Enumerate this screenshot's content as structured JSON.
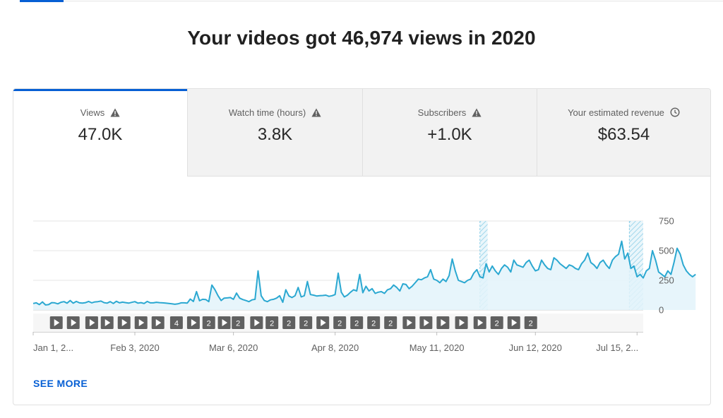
{
  "headline": "Your videos got 46,974 views in 2020",
  "accent_color": "#065fd4",
  "tabs": [
    {
      "label": "Views",
      "value": "47.0K",
      "icon": "warning-icon",
      "selected": true
    },
    {
      "label": "Watch time (hours)",
      "value": "3.8K",
      "icon": "warning-icon",
      "selected": false
    },
    {
      "label": "Subscribers",
      "value": "+1.0K",
      "icon": "warning-icon",
      "selected": false
    },
    {
      "label": "Your estimated revenue",
      "value": "$63.54",
      "icon": "clock-icon",
      "selected": false
    }
  ],
  "see_more": "SEE MORE",
  "chart_data": {
    "type": "line",
    "series_name": "Views",
    "line_color": "#2ba8d1",
    "fill_color": "#e3f3fa",
    "y_ticks": [
      "750",
      "500",
      "250",
      "0"
    ],
    "y_tick_values": [
      750,
      500,
      250,
      0
    ],
    "ylim": [
      0,
      750
    ],
    "x_tick_labels": [
      "Jan 1, 2...",
      "Feb 3, 2020",
      "Mar 6, 2020",
      "Apr 8, 2020",
      "May 11, 2020",
      "Jun 12, 2020",
      "Jul 15, 2..."
    ],
    "x_tick_days": [
      0,
      33,
      65,
      98,
      131,
      163,
      196
    ],
    "day_range": [
      0,
      198
    ],
    "shaded_ranges": [
      [
        145,
        147.5
      ],
      [
        193.5,
        198
      ]
    ],
    "values": [
      55,
      60,
      45,
      68,
      42,
      45,
      62,
      60,
      52,
      65,
      70,
      58,
      80,
      57,
      72,
      60,
      58,
      62,
      72,
      60,
      68,
      70,
      75,
      62,
      58,
      70,
      55,
      73,
      60,
      66,
      62,
      58,
      64,
      70,
      58,
      62,
      55,
      72,
      60,
      60,
      65,
      62,
      60,
      58,
      55,
      52,
      48,
      52,
      60,
      60,
      58,
      92,
      72,
      155,
      78,
      90,
      88,
      70,
      210,
      170,
      120,
      80,
      100,
      102,
      105,
      90,
      142,
      100,
      88,
      80,
      70,
      85,
      90,
      330,
      120,
      80,
      70,
      85,
      90,
      100,
      120,
      65,
      170,
      118,
      105,
      120,
      190,
      110,
      120,
      240,
      130,
      125,
      118,
      120,
      122,
      125,
      115,
      120,
      130,
      310,
      150,
      110,
      125,
      150,
      170,
      160,
      300,
      145,
      200,
      160,
      180,
      140,
      150,
      155,
      140,
      170,
      180,
      210,
      190,
      160,
      220,
      215,
      180,
      200,
      230,
      260,
      255,
      270,
      280,
      340,
      260,
      250,
      230,
      260,
      240,
      290,
      430,
      330,
      250,
      240,
      230,
      250,
      260,
      310,
      340,
      280,
      270,
      390,
      320,
      370,
      330,
      300,
      350,
      380,
      360,
      320,
      420,
      380,
      370,
      360,
      400,
      420,
      370,
      330,
      340,
      420,
      380,
      350,
      340,
      440,
      420,
      390,
      370,
      350,
      380,
      370,
      350,
      340,
      390,
      420,
      480,
      400,
      380,
      350,
      400,
      420,
      380,
      350,
      420,
      450,
      470,
      580,
      430,
      480,
      350,
      370,
      280,
      300,
      270,
      330,
      350,
      500,
      420,
      320,
      300,
      280,
      330,
      300,
      400,
      520,
      470,
      380,
      330,
      300,
      280,
      300
    ],
    "video_markers": [
      {
        "day": 7.5,
        "label": ""
      },
      {
        "day": 13,
        "label": ""
      },
      {
        "day": 19,
        "label": ""
      },
      {
        "day": 24,
        "label": ""
      },
      {
        "day": 29.5,
        "label": ""
      },
      {
        "day": 35,
        "label": ""
      },
      {
        "day": 40.5,
        "label": ""
      },
      {
        "day": 46.5,
        "label": "4"
      },
      {
        "day": 52,
        "label": ""
      },
      {
        "day": 57,
        "label": "2"
      },
      {
        "day": 62,
        "label": ""
      },
      {
        "day": 66.5,
        "label": "2"
      },
      {
        "day": 72.5,
        "label": ""
      },
      {
        "day": 77.5,
        "label": "2"
      },
      {
        "day": 83,
        "label": "2"
      },
      {
        "day": 88.5,
        "label": "2"
      },
      {
        "day": 94,
        "label": ""
      },
      {
        "day": 99.5,
        "label": "2"
      },
      {
        "day": 105,
        "label": "2"
      },
      {
        "day": 110.5,
        "label": "2"
      },
      {
        "day": 116,
        "label": "2"
      },
      {
        "day": 122,
        "label": ""
      },
      {
        "day": 127.5,
        "label": ""
      },
      {
        "day": 133,
        "label": ""
      },
      {
        "day": 139,
        "label": ""
      },
      {
        "day": 145,
        "label": ""
      },
      {
        "day": 150.5,
        "label": "2"
      },
      {
        "day": 156,
        "label": ""
      },
      {
        "day": 161.5,
        "label": "2"
      }
    ]
  }
}
